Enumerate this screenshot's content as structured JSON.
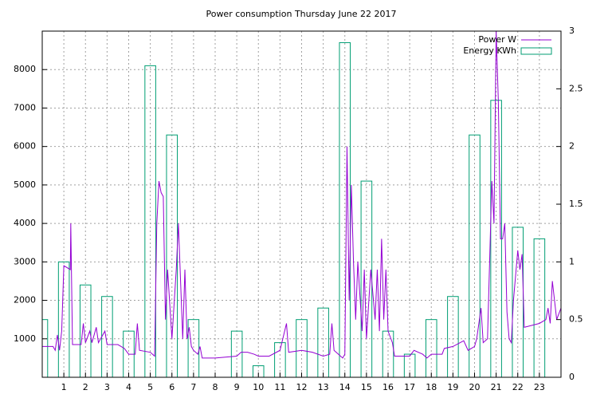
{
  "chart_data": {
    "type": "bar-line",
    "title": "Power consumption Thursday June 22 2017",
    "xlim": [
      0,
      24
    ],
    "xticks": [
      1,
      2,
      3,
      4,
      5,
      6,
      7,
      8,
      9,
      10,
      11,
      12,
      13,
      14,
      15,
      16,
      17,
      18,
      19,
      20,
      21,
      22,
      23
    ],
    "ylim": [
      0,
      9000
    ],
    "yticks": [
      1000,
      2000,
      3000,
      4000,
      5000,
      6000,
      7000,
      8000
    ],
    "y2lim": [
      0,
      3
    ],
    "y2ticks": [
      0,
      0.5,
      1,
      1.5,
      2,
      2.5,
      3
    ],
    "grid": true,
    "legend": "top-right",
    "series": [
      {
        "name": "Power W",
        "type": "line",
        "color": "#9400d3",
        "x": [
          0,
          0.5,
          0.6,
          0.7,
          0.8,
          0.9,
          1.0,
          1.3,
          1.32,
          1.4,
          1.8,
          1.9,
          2.0,
          2.2,
          2.3,
          2.5,
          2.6,
          2.9,
          3.0,
          3.5,
          3.8,
          4.0,
          4.3,
          4.4,
          4.5,
          5.0,
          5.2,
          5.3,
          5.4,
          5.5,
          5.6,
          5.7,
          5.8,
          6.0,
          6.2,
          6.3,
          6.5,
          6.6,
          6.7,
          6.8,
          6.9,
          7.0,
          7.2,
          7.3,
          7.4,
          8.0,
          9.0,
          9.2,
          9.5,
          9.8,
          10.0,
          10.5,
          11.0,
          11.3,
          11.4,
          12.0,
          12.5,
          13.0,
          13.3,
          13.4,
          13.5,
          13.9,
          14.0,
          14.1,
          14.2,
          14.3,
          14.4,
          14.5,
          14.6,
          14.8,
          14.9,
          15.0,
          15.2,
          15.4,
          15.5,
          15.6,
          15.7,
          15.8,
          15.9,
          16.0,
          16.2,
          16.3,
          17.0,
          17.2,
          17.6,
          17.8,
          18.0,
          18.5,
          18.6,
          19.0,
          19.5,
          19.7,
          20.0,
          20.1,
          20.3,
          20.4,
          20.6,
          20.8,
          20.9,
          21.0,
          21.1,
          21.2,
          21.3,
          21.4,
          21.5,
          21.6,
          21.7,
          21.8,
          22.0,
          22.1,
          22.2,
          22.3,
          23.0,
          23.3,
          23.4,
          23.5,
          23.6,
          23.8,
          24.0
        ],
        "values": [
          800,
          800,
          700,
          1100,
          700,
          1200,
          2900,
          2800,
          4000,
          850,
          850,
          1400,
          900,
          1200,
          900,
          1300,
          900,
          1200,
          850,
          850,
          750,
          600,
          600,
          1400,
          700,
          650,
          550,
          4000,
          5100,
          4800,
          4700,
          1500,
          2800,
          1000,
          2800,
          4000,
          1000,
          2800,
          1000,
          1300,
          800,
          700,
          600,
          800,
          500,
          500,
          550,
          650,
          650,
          600,
          550,
          550,
          700,
          1400,
          650,
          700,
          650,
          550,
          600,
          1400,
          700,
          500,
          600,
          6000,
          2000,
          5000,
          3000,
          1500,
          3000,
          1200,
          2800,
          1000,
          2800,
          1500,
          2800,
          1200,
          3600,
          1500,
          2800,
          1200,
          900,
          550,
          550,
          700,
          600,
          500,
          600,
          600,
          750,
          800,
          950,
          700,
          800,
          1000,
          1800,
          900,
          1000,
          5100,
          4000,
          9000,
          7200,
          3600,
          3600,
          4000,
          1700,
          1000,
          900,
          2000,
          3300,
          2800,
          3200,
          1300,
          1400,
          1500,
          1800,
          1400,
          2500,
          1500,
          1800
        ]
      },
      {
        "name": "Energy KWh",
        "type": "bar",
        "color": "#009e73",
        "axis": "y2",
        "x": [
          0,
          1,
          2,
          3,
          4,
          5,
          6,
          7,
          8,
          9,
          10,
          11,
          12,
          13,
          14,
          15,
          16,
          17,
          18,
          19,
          20,
          21,
          22,
          23
        ],
        "values": [
          0.5,
          1.0,
          0.8,
          0.7,
          0.4,
          2.7,
          2.1,
          0.5,
          0,
          0.4,
          0.1,
          0.3,
          0.5,
          0.6,
          2.9,
          1.7,
          0.4,
          0.2,
          0.5,
          0.7,
          2.1,
          2.4,
          1.3,
          1.2
        ]
      }
    ]
  }
}
